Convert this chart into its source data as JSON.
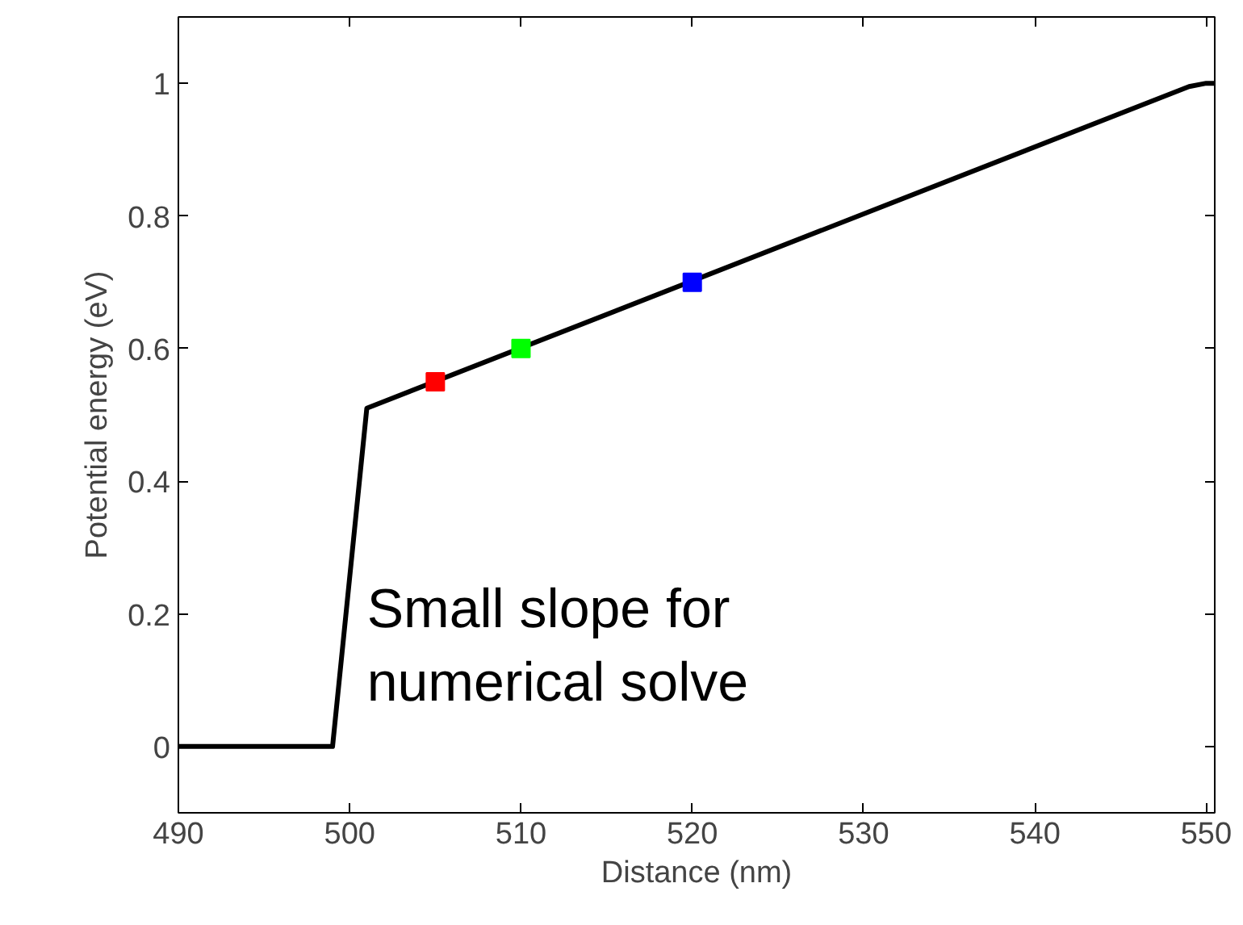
{
  "chart_data": {
    "type": "line",
    "xlabel": "Distance (nm)",
    "ylabel": "Potential energy (eV)",
    "xlim": [
      490,
      550.5
    ],
    "ylim": [
      -0.1,
      1.1
    ],
    "xticks": [
      490,
      500,
      510,
      520,
      530,
      540,
      550
    ],
    "yticks": [
      0,
      0.2,
      0.4,
      0.6,
      0.8,
      1
    ],
    "line_style": "solid",
    "marker": "none",
    "series": [
      {
        "color": "#000000",
        "x": [
          490,
          499,
          501,
          549,
          550,
          550.5
        ],
        "values": [
          0,
          0,
          0.51,
          0.995,
          1,
          1
        ]
      },
      {
        "type": "scatter",
        "marker": "square",
        "colors": [
          "#ff0000",
          "#00ff00",
          "#0000ff"
        ],
        "x": [
          505,
          510,
          520
        ],
        "values": [
          0.55,
          0.6,
          0.7
        ]
      }
    ],
    "annotations": [
      "Small slope for\nnumerical solve"
    ]
  }
}
